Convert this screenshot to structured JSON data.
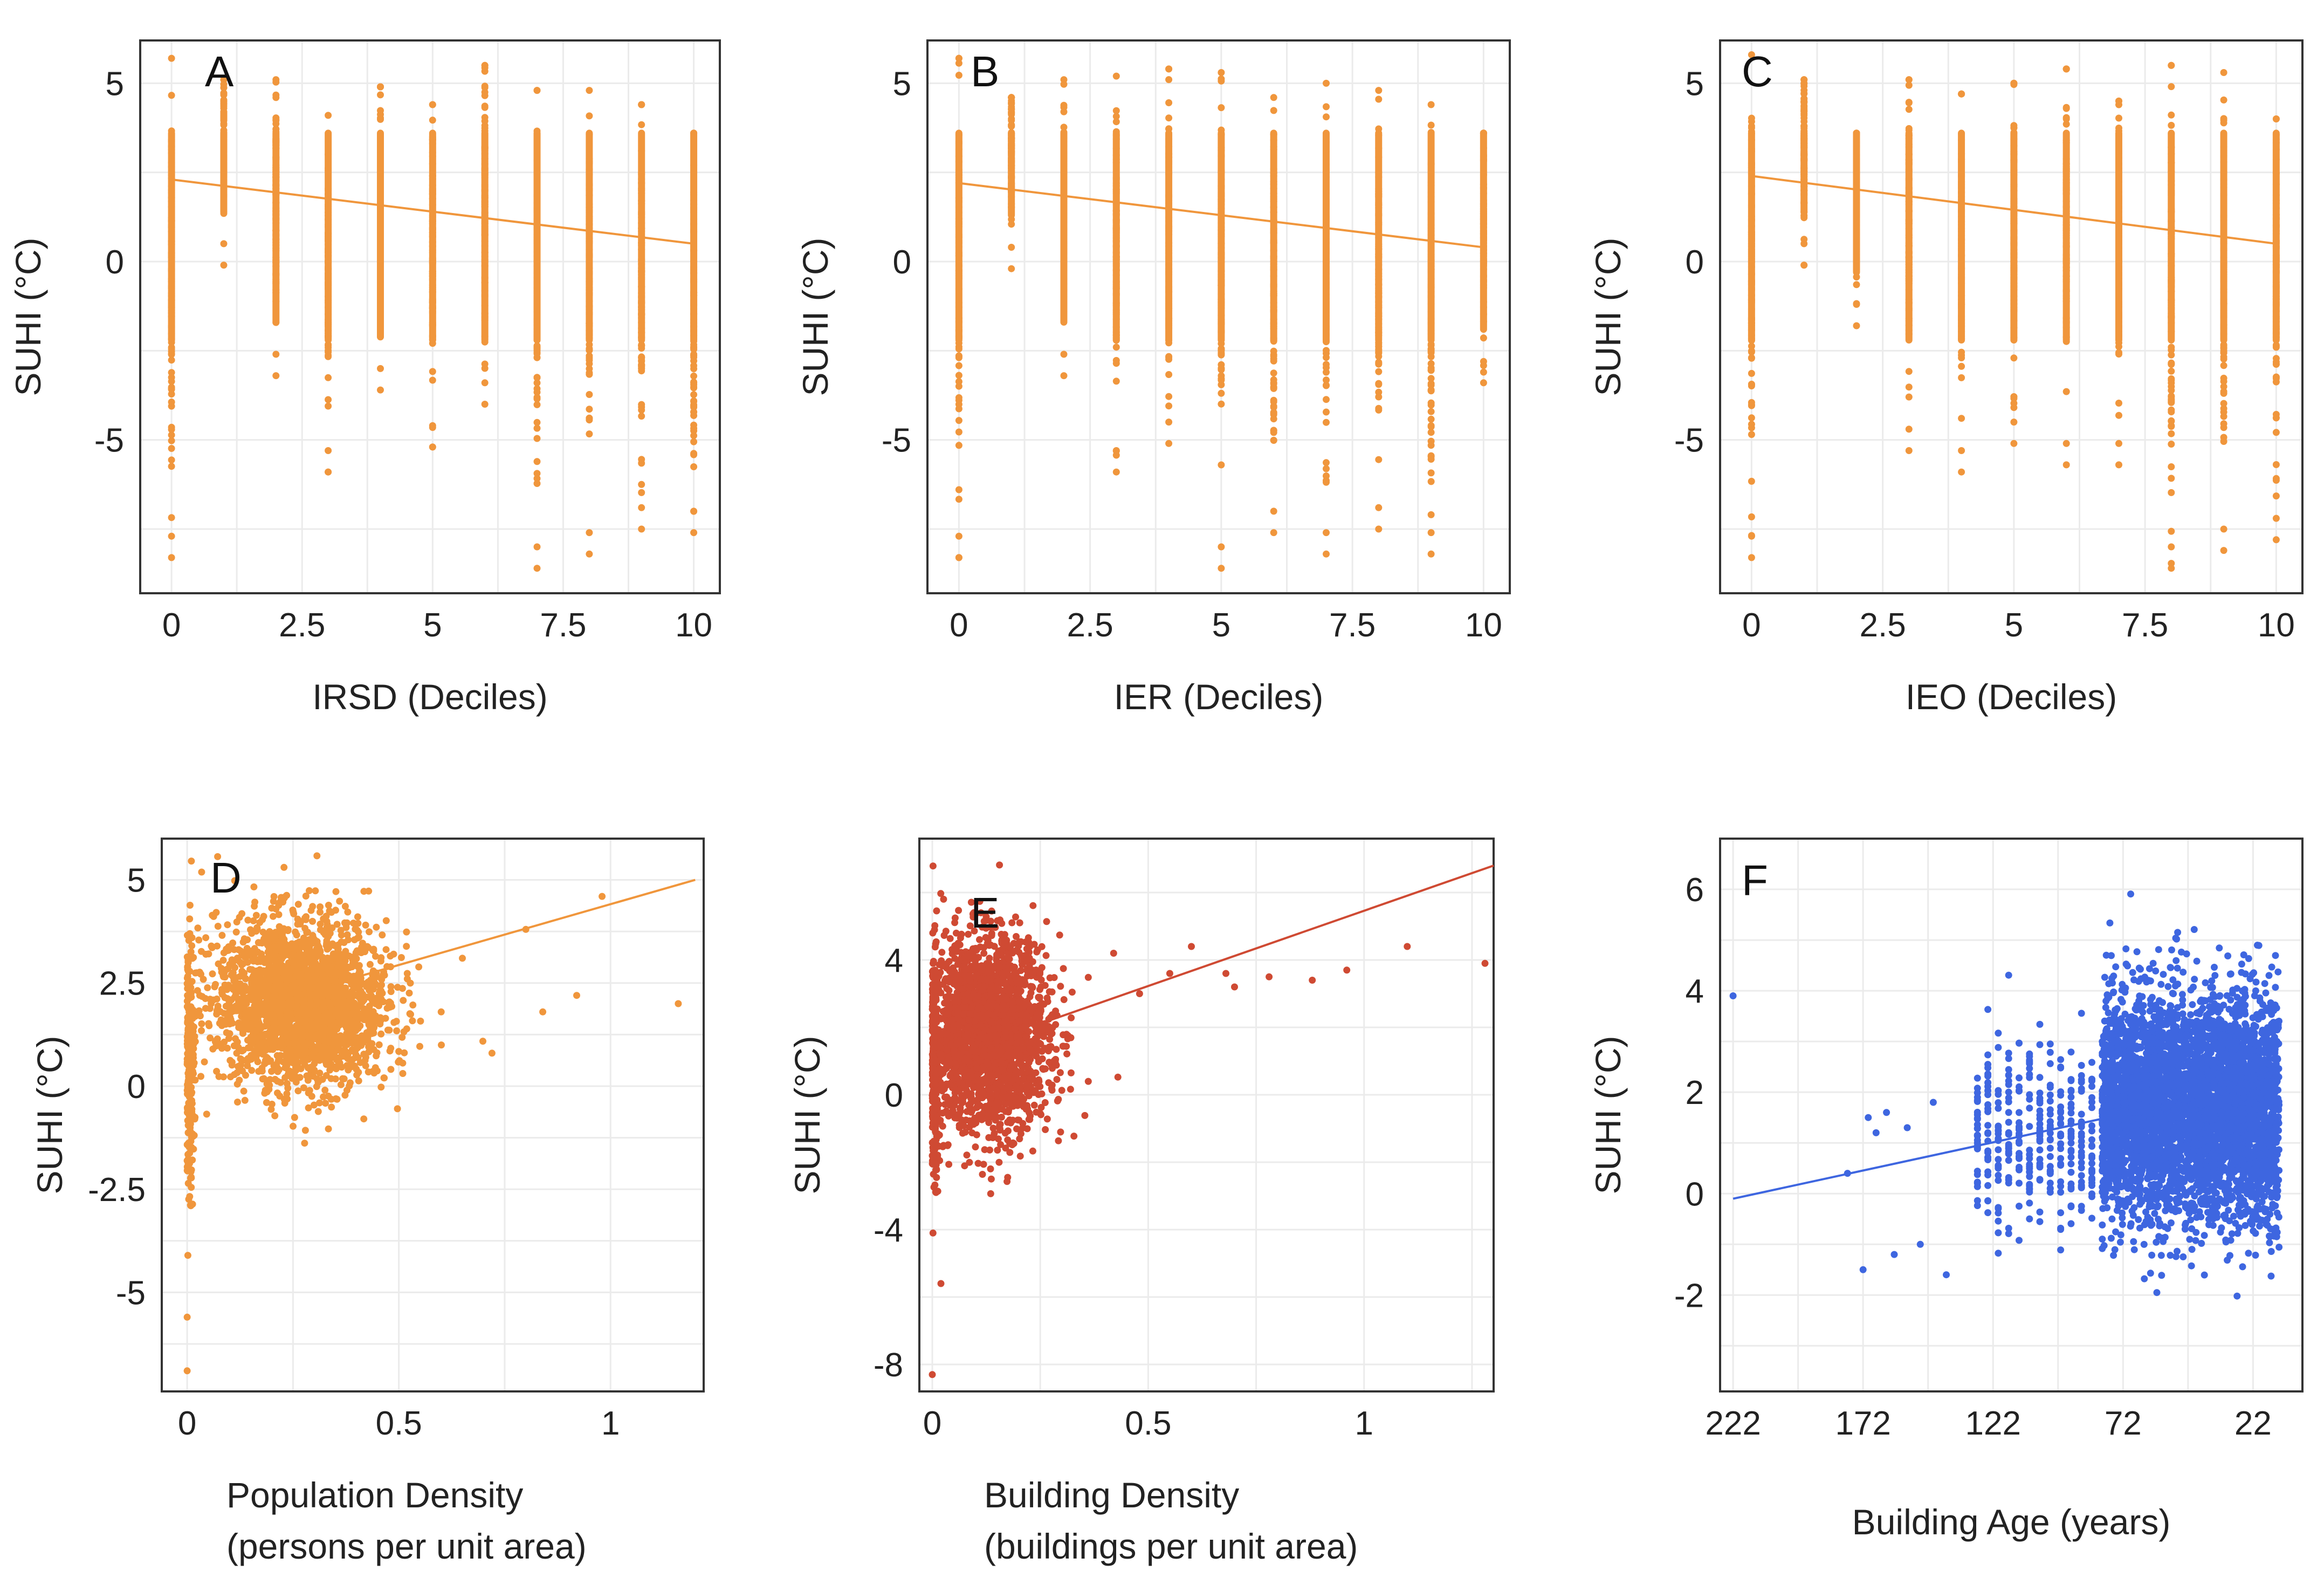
{
  "chart_data": [
    {
      "panel": "A",
      "type": "scatter",
      "xlabel": "IRSD (Deciles)",
      "ylabel": "SUHI (°C)",
      "xlim": [
        -0.6,
        10.5
      ],
      "ylim": [
        -9.3,
        6.2
      ],
      "xticks": [
        0,
        2.5,
        5,
        7.5,
        10
      ],
      "xtick_labels": [
        "0",
        "2.5",
        "5",
        "7.5",
        "10"
      ],
      "yticks": [
        -5,
        0,
        5
      ],
      "ytick_labels": [
        "-5",
        "0",
        "5"
      ],
      "color": "#F0963C",
      "columns": [
        {
          "x": 0,
          "min": -8.3,
          "max": 5.7
        },
        {
          "x": 1,
          "min": -0.1,
          "max": 5.1
        },
        {
          "x": 2,
          "min": -3.2,
          "max": 5.1
        },
        {
          "x": 3,
          "min": -5.9,
          "max": 4.1
        },
        {
          "x": 4,
          "min": -3.6,
          "max": 4.9
        },
        {
          "x": 5,
          "min": -5.2,
          "max": 4.4
        },
        {
          "x": 6,
          "min": -4.0,
          "max": 5.5
        },
        {
          "x": 7,
          "min": -8.6,
          "max": 4.8
        },
        {
          "x": 8,
          "min": -8.2,
          "max": 4.8
        },
        {
          "x": 9,
          "min": -7.5,
          "max": 4.4
        },
        {
          "x": 10,
          "min": -7.6,
          "max": 3.6
        }
      ],
      "trend": {
        "x1": 0,
        "y1": 2.3,
        "x2": 10,
        "y2": 0.5
      }
    },
    {
      "panel": "B",
      "type": "scatter",
      "xlabel": "IER (Deciles)",
      "ylabel": "SUHI (°C)",
      "xlim": [
        -0.6,
        10.5
      ],
      "ylim": [
        -9.3,
        6.2
      ],
      "xticks": [
        0,
        2.5,
        5,
        7.5,
        10
      ],
      "xtick_labels": [
        "0",
        "2.5",
        "5",
        "7.5",
        "10"
      ],
      "yticks": [
        -5,
        0,
        5
      ],
      "ytick_labels": [
        "-5",
        "0",
        "5"
      ],
      "color": "#F0963C",
      "columns": [
        {
          "x": 0,
          "min": -8.3,
          "max": 5.7
        },
        {
          "x": 1,
          "min": -0.2,
          "max": 4.6
        },
        {
          "x": 2,
          "min": -3.2,
          "max": 5.1
        },
        {
          "x": 3,
          "min": -5.9,
          "max": 5.2
        },
        {
          "x": 4,
          "min": -5.1,
          "max": 5.4
        },
        {
          "x": 5,
          "min": -8.6,
          "max": 5.3
        },
        {
          "x": 6,
          "min": -7.6,
          "max": 4.6
        },
        {
          "x": 7,
          "min": -8.2,
          "max": 5.0
        },
        {
          "x": 8,
          "min": -7.5,
          "max": 4.8
        },
        {
          "x": 9,
          "min": -8.2,
          "max": 4.4
        },
        {
          "x": 10,
          "min": -3.4,
          "max": 3.6
        }
      ],
      "trend": {
        "x1": 0,
        "y1": 2.2,
        "x2": 10,
        "y2": 0.4
      }
    },
    {
      "panel": "C",
      "type": "scatter",
      "xlabel": "IEO (Deciles)",
      "ylabel": "SUHI (°C)",
      "xlim": [
        -0.6,
        10.5
      ],
      "ylim": [
        -9.3,
        6.2
      ],
      "xticks": [
        0,
        2.5,
        5,
        7.5,
        10
      ],
      "xtick_labels": [
        "0",
        "2.5",
        "5",
        "7.5",
        "10"
      ],
      "yticks": [
        -5,
        0,
        5
      ],
      "ytick_labels": [
        "-5",
        "0",
        "5"
      ],
      "color": "#F0963C",
      "columns": [
        {
          "x": 0,
          "min": -8.3,
          "max": 5.8
        },
        {
          "x": 1,
          "min": -0.1,
          "max": 5.1
        },
        {
          "x": 2,
          "min": -1.8,
          "max": 3.6
        },
        {
          "x": 3,
          "min": -5.3,
          "max": 5.1
        },
        {
          "x": 4,
          "min": -5.9,
          "max": 4.7
        },
        {
          "x": 5,
          "min": -5.1,
          "max": 5.0
        },
        {
          "x": 6,
          "min": -5.7,
          "max": 5.4
        },
        {
          "x": 7,
          "min": -5.7,
          "max": 4.5
        },
        {
          "x": 8,
          "min": -8.6,
          "max": 5.5
        },
        {
          "x": 9,
          "min": -8.1,
          "max": 5.3
        },
        {
          "x": 10,
          "min": -7.8,
          "max": 4.0
        }
      ],
      "trend": {
        "x1": 0,
        "y1": 2.4,
        "x2": 10,
        "y2": 0.5
      }
    },
    {
      "panel": "D",
      "type": "scatter",
      "xlabel": "Population Density",
      "xlabel2": "(persons per unit area)",
      "ylabel": "SUHI (°C)",
      "xlim": [
        -0.06,
        1.22
      ],
      "ylim": [
        -7.4,
        6.0
      ],
      "xticks": [
        0,
        0.5,
        1
      ],
      "xtick_labels": [
        "0",
        "0.5",
        "1"
      ],
      "yticks": [
        -5,
        -2.5,
        0,
        2.5,
        5
      ],
      "ytick_labels": [
        "-5",
        "-2.5",
        "0",
        "2.5",
        "5"
      ],
      "color": "#F0963C",
      "cloud": {
        "cx": 0.27,
        "cy": 2.0,
        "sx": 0.1,
        "sy": 1.0
      },
      "sparse": [
        [
          0.0,
          -6.9
        ],
        [
          0.0,
          -5.6
        ],
        [
          0.52,
          2.6
        ],
        [
          0.6,
          1.8
        ],
        [
          0.65,
          3.1
        ],
        [
          0.72,
          0.8
        ],
        [
          0.8,
          3.8
        ],
        [
          0.84,
          1.8
        ],
        [
          0.92,
          2.2
        ],
        [
          0.98,
          4.6
        ],
        [
          1.16,
          2.0
        ]
      ],
      "trend": {
        "x1": 0.25,
        "y1": 2.2,
        "x2": 1.2,
        "y2": 5.0
      }
    },
    {
      "panel": "E",
      "type": "scatter",
      "xlabel": "Building Density",
      "xlabel2": "(buildings per unit area)",
      "ylabel": "SUHI (°C)",
      "xlim": [
        -0.03,
        1.3
      ],
      "ylim": [
        -8.8,
        7.6
      ],
      "xticks": [
        0,
        0.5,
        1
      ],
      "xtick_labels": [
        "0",
        "0.5",
        "1"
      ],
      "yticks": [
        -8,
        -4,
        0,
        4
      ],
      "ytick_labels": [
        "-8",
        "-4",
        "0",
        "4"
      ],
      "color": "#CF4A33",
      "cloud": {
        "cx": 0.13,
        "cy": 1.8,
        "sx": 0.07,
        "sy": 1.4
      },
      "sparse": [
        [
          0.0,
          -8.3
        ],
        [
          0.02,
          -5.6
        ],
        [
          0.42,
          4.2
        ],
        [
          0.48,
          3.0
        ],
        [
          0.55,
          3.6
        ],
        [
          0.6,
          4.4
        ],
        [
          0.68,
          3.6
        ],
        [
          0.7,
          3.2
        ],
        [
          0.78,
          3.5
        ],
        [
          0.88,
          3.4
        ],
        [
          0.96,
          3.7
        ],
        [
          1.1,
          4.4
        ],
        [
          1.28,
          3.9
        ]
      ],
      "trend": {
        "x1": 0.27,
        "y1": 2.2,
        "x2": 1.3,
        "y2": 6.8
      }
    },
    {
      "panel": "F",
      "type": "scatter",
      "xlabel": "Building Age (years)",
      "ylabel": "SUHI (°C)",
      "xlim": [
        227,
        3
      ],
      "ylim": [
        -3.9,
        7.0
      ],
      "xticks": [
        222,
        172,
        122,
        72,
        22
      ],
      "xtick_labels": [
        "222",
        "172",
        "122",
        "72",
        "22"
      ],
      "yticks": [
        -2,
        0,
        2,
        4,
        6
      ],
      "ytick_labels": [
        "-2",
        "0",
        "2",
        "4",
        "6"
      ],
      "color": "#3E66E0",
      "cloud": {
        "x_min": 12,
        "x_max": 80,
        "cy": 1.7,
        "sy": 1.1
      },
      "columns_region": {
        "x_min": 80,
        "x_max": 128
      },
      "sparse": [
        [
          222,
          3.9
        ],
        [
          172,
          -1.5
        ],
        [
          170,
          1.5
        ],
        [
          167,
          1.2
        ],
        [
          163,
          1.6
        ],
        [
          160,
          -1.2
        ],
        [
          155,
          1.3
        ],
        [
          150,
          -1.0
        ],
        [
          145,
          1.8
        ],
        [
          140,
          -1.6
        ],
        [
          178,
          0.4
        ]
      ],
      "trend": {
        "x1": 222,
        "y1": -0.1,
        "x2": 60,
        "y2": 1.7
      }
    }
  ]
}
